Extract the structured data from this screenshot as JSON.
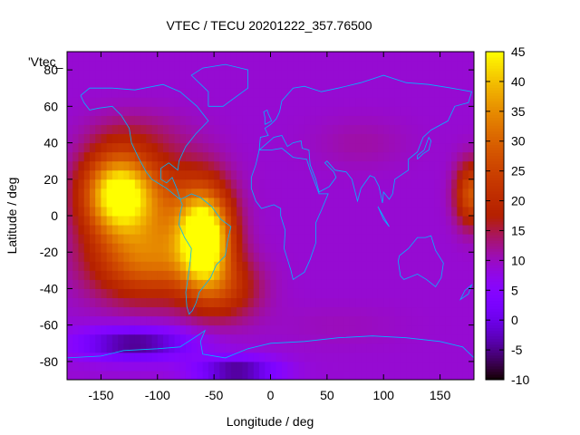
{
  "chart_data": {
    "type": "heatmap",
    "title": "VTEC / TECU 20201222_357.76500",
    "xlabel": "Longitude / deg",
    "ylabel": "Latitude / deg",
    "series_label": "'Vtec_",
    "xlim": [
      -180,
      180
    ],
    "ylim": [
      -90,
      90
    ],
    "x_ticks": [
      -150,
      -100,
      -50,
      0,
      50,
      100,
      150
    ],
    "y_ticks": [
      -80,
      -60,
      -40,
      -20,
      0,
      20,
      40,
      60,
      80
    ],
    "colorbar": {
      "range": [
        -10,
        45
      ],
      "ticks": [
        -10,
        -5,
        0,
        5,
        10,
        15,
        20,
        25,
        30,
        35,
        40,
        45
      ],
      "palette": "gnuplot-pm3d",
      "low_color": "#000000",
      "mid_color": "#8000ff",
      "high_color": "#ffff40"
    },
    "grid": false,
    "features": [
      {
        "lon": -135,
        "lat": 12,
        "lon_sigma": 22,
        "lat_sigma": 16,
        "value": 40
      },
      {
        "lon": -58,
        "lat": -12,
        "lon_sigma": 16,
        "lat_sigma": 18,
        "value": 41
      },
      {
        "lon": -110,
        "lat": -25,
        "lon_sigma": 35,
        "lat_sigma": 15,
        "value": 22
      },
      {
        "lon": -90,
        "lat": 5,
        "lon_sigma": 30,
        "lat_sigma": 20,
        "value": 15
      },
      {
        "lon": -40,
        "lat": -40,
        "lon_sigma": 22,
        "lat_sigma": 12,
        "value": 14
      },
      {
        "lon": 178,
        "lat": 12,
        "lon_sigma": 10,
        "lat_sigma": 12,
        "value": 22
      },
      {
        "lon": -120,
        "lat": 45,
        "lon_sigma": 30,
        "lat_sigma": 10,
        "value": 6
      },
      {
        "lon": 80,
        "lat": 40,
        "lon_sigma": 30,
        "lat_sigma": 10,
        "value": 5
      },
      {
        "lon": 60,
        "lat": -60,
        "lon_sigma": 40,
        "lat_sigma": 8,
        "value": 4
      },
      {
        "lon": -120,
        "lat": -70,
        "lon_sigma": 35,
        "lat_sigma": 6,
        "value": -12
      },
      {
        "lon": -30,
        "lat": -85,
        "lon_sigma": 25,
        "lat_sigma": 5,
        "value": -12
      }
    ],
    "background_value": 9
  }
}
